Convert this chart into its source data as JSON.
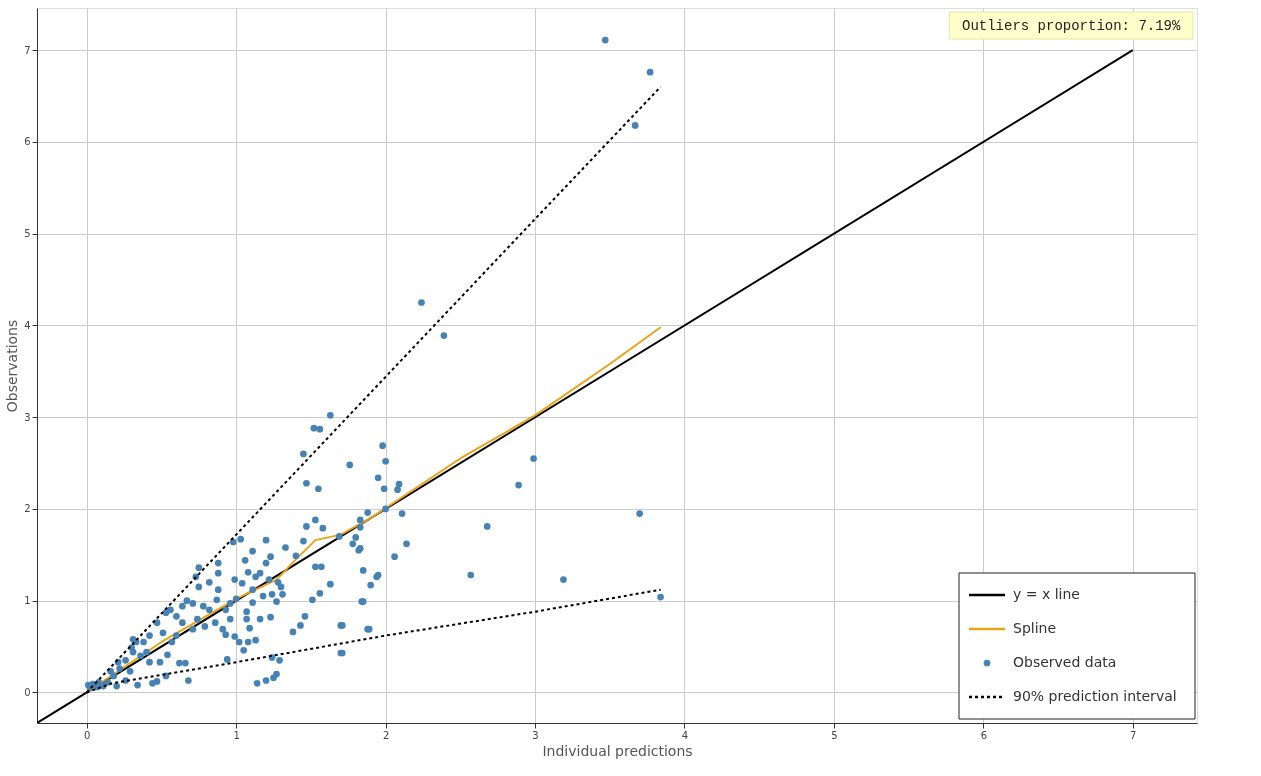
{
  "chart_data": {
    "type": "scatter",
    "xlabel": "Individual predictions",
    "ylabel": "Observations",
    "xlim": [
      -0.333,
      7.43
    ],
    "ylim": [
      -0.333,
      7.46
    ],
    "xticks": [
      0,
      1,
      2,
      3,
      4,
      5,
      6,
      7
    ],
    "yticks": [
      0,
      1,
      2,
      3,
      4,
      5,
      6,
      7
    ],
    "grid": true,
    "legend": "bottom right",
    "annotations": [
      "Outliers proportion: 7.19%"
    ],
    "series": [
      {
        "name": "y = x line",
        "type": "line",
        "color": "#000000",
        "line_style": "solid",
        "x": [
          -0.33,
          7.0
        ],
        "values": [
          -0.33,
          7.0
        ]
      },
      {
        "name": "Spline",
        "type": "line",
        "color": "#e8a317",
        "line_style": "solid",
        "x": [
          0,
          0.5,
          1,
          1.27,
          1.4,
          1.53,
          1.7,
          1.9,
          2.5,
          3,
          3.5,
          3.84
        ],
        "values": [
          0,
          0.55,
          1.02,
          1.23,
          1.45,
          1.66,
          1.72,
          1.9,
          2.55,
          3.02,
          3.58,
          3.98
        ]
      },
      {
        "name": "Observed data",
        "color": "#4682b4",
        "marker": "circle",
        "x": [
          3.47,
          3.77,
          3.67,
          2.24,
          2.39,
          1.63,
          1.52,
          1.56,
          1.45,
          1.76,
          1.98,
          2.0,
          1.95,
          2.09,
          1.99,
          1.55,
          1.47,
          2.99,
          2.89,
          2.68,
          3.7,
          2.57,
          3.19,
          3.84,
          2.11,
          2.14,
          2.06,
          1.94,
          1.88,
          1.7,
          1.7,
          1.82,
          1.85,
          1.85,
          1.25,
          1.2,
          1.27,
          1.29,
          2.08,
          1.88,
          1.83,
          2.0,
          1.53,
          1.47,
          1.58,
          1.69,
          1.8,
          1.78,
          1.83,
          1.83,
          1.53,
          1.57,
          1.63,
          1.95,
          1.9,
          1.51,
          1.56,
          1.84,
          1.46,
          1.43,
          1.38,
          1.71,
          1.89,
          1.71,
          1.24,
          1.14,
          1.33,
          1.2,
          1.45,
          1.4,
          1.03,
          0.98,
          0.88,
          1.06,
          1.11,
          1.23,
          1.2,
          1.08,
          0.88,
          0.75,
          0.82,
          0.88,
          0.73,
          0.75,
          0.99,
          1.04,
          1.13,
          1.16,
          1.22,
          1.28,
          1.3,
          1.11,
          1.24,
          1.31,
          1.27,
          1.18,
          1.11,
          1.07,
          1.07,
          1.09,
          1.16,
          1.23,
          0.99,
          1.02,
          1.08,
          1.13,
          1.05,
          0.93,
          0.91,
          0.96,
          0.93,
          0.96,
          1.0,
          0.86,
          0.79,
          0.82,
          0.78,
          0.71,
          0.67,
          0.64,
          0.56,
          0.53,
          0.6,
          0.64,
          0.71,
          0.57,
          0.6,
          0.51,
          0.47,
          0.42,
          0.38,
          0.33,
          0.4,
          0.36,
          0.31,
          0.42,
          0.49,
          0.31,
          0.3,
          0.54,
          0.62,
          0.66,
          0.94,
          0.26,
          0.21,
          0.22,
          0.29,
          0.26,
          0.34,
          0.44,
          0.47,
          0.53,
          0.68,
          0.18,
          0.14,
          0.11,
          0.08,
          0.04,
          0.02,
          0.2,
          0.16,
          0.01,
          0.07,
          0.74,
          0.87
        ],
        "values": [
          7.11,
          6.76,
          6.18,
          4.25,
          3.89,
          3.02,
          2.88,
          2.87,
          2.6,
          2.48,
          2.69,
          2.52,
          2.34,
          2.27,
          2.22,
          2.22,
          2.28,
          2.55,
          2.26,
          1.81,
          1.95,
          1.28,
          1.23,
          1.04,
          1.95,
          1.62,
          1.48,
          1.26,
          0.69,
          0.43,
          0.73,
          1.55,
          1.33,
          0.99,
          0.16,
          0.13,
          0.2,
          0.35,
          2.21,
          1.96,
          1.88,
          2.0,
          1.88,
          1.81,
          1.79,
          1.7,
          1.69,
          1.62,
          1.57,
          1.8,
          1.37,
          1.37,
          1.18,
          1.28,
          1.17,
          1.01,
          1.08,
          0.99,
          0.83,
          0.73,
          0.66,
          0.73,
          0.69,
          0.43,
          0.38,
          0.1,
          1.58,
          1.66,
          1.65,
          1.49,
          1.67,
          1.64,
          1.41,
          1.44,
          1.54,
          1.48,
          1.41,
          1.31,
          1.3,
          1.36,
          1.2,
          1.12,
          1.26,
          1.15,
          1.23,
          1.19,
          1.26,
          1.3,
          1.23,
          1.2,
          1.15,
          1.12,
          1.07,
          1.07,
          0.99,
          1.05,
          0.98,
          0.88,
          0.8,
          0.7,
          0.8,
          0.82,
          0.61,
          0.55,
          0.55,
          0.57,
          0.46,
          0.63,
          0.69,
          0.8,
          0.9,
          0.97,
          1.02,
          0.76,
          0.72,
          0.9,
          0.94,
          0.97,
          1.0,
          0.94,
          0.9,
          0.87,
          0.83,
          0.76,
          0.69,
          0.55,
          0.62,
          0.65,
          0.76,
          0.62,
          0.55,
          0.55,
          0.44,
          0.4,
          0.44,
          0.33,
          0.33,
          0.58,
          0.49,
          0.41,
          0.32,
          0.32,
          0.36,
          0.35,
          0.33,
          0.26,
          0.23,
          0.13,
          0.08,
          0.1,
          0.12,
          0.18,
          0.13,
          0.18,
          0.11,
          0.07,
          0.11,
          0.09,
          0.06,
          0.07,
          0.23,
          0.08,
          0.06,
          0.8,
          1.01
        ]
      },
      {
        "name": "90% prediction interval",
        "type": "line",
        "color": "#000000",
        "line_style": "dotted",
        "x": [
          0,
          1,
          2,
          3,
          3.84,
          null,
          0,
          0.17,
          1,
          2,
          3,
          3.84
        ],
        "values": [
          0,
          1.72,
          3.44,
          5.16,
          6.6,
          null,
          0,
          0.1,
          0.33,
          0.62,
          0.88,
          1.12
        ]
      }
    ]
  }
}
